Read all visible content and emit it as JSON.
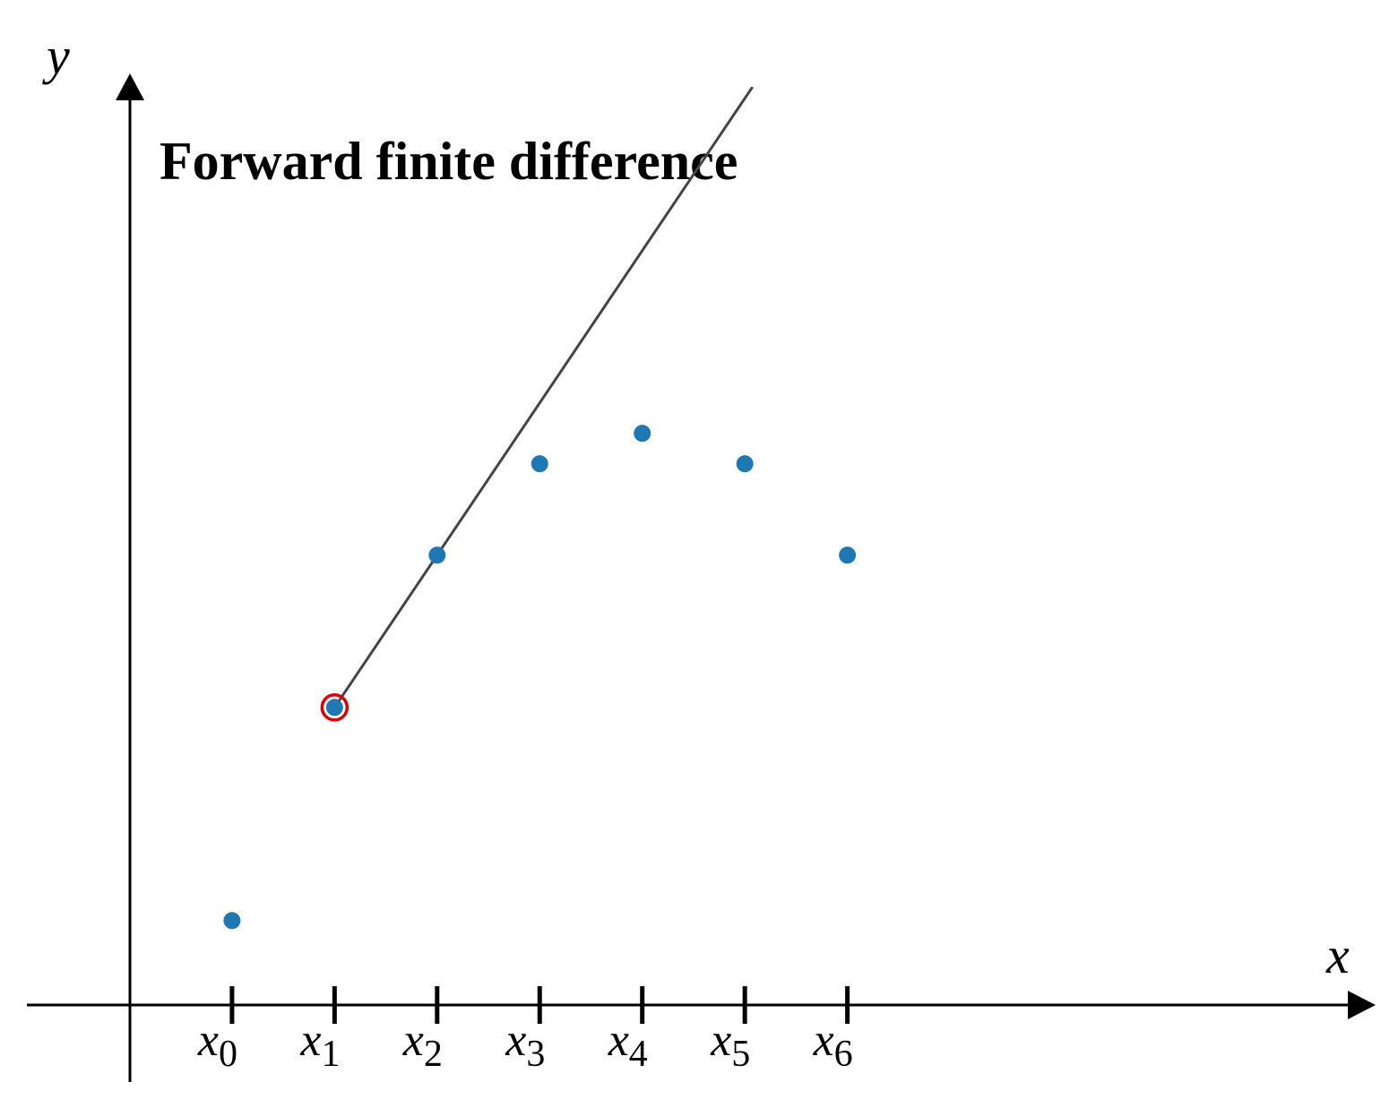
{
  "chart_data": {
    "type": "scatter",
    "title": "Forward finite difference",
    "x_label": "x",
    "y_label": "y",
    "x": [
      1,
      2,
      3,
      4,
      5,
      6,
      7
    ],
    "values": [
      2.8,
      9.8,
      14.8,
      17.8,
      18.8,
      17.8,
      14.8
    ],
    "tick_labels": [
      {
        "var": "x",
        "sub": "0"
      },
      {
        "var": "x",
        "sub": "1"
      },
      {
        "var": "x",
        "sub": "2"
      },
      {
        "var": "x",
        "sub": "3"
      },
      {
        "var": "x",
        "sub": "4"
      },
      {
        "var": "x",
        "sub": "5"
      },
      {
        "var": "x",
        "sub": "6"
      }
    ],
    "xlim": [
      -1,
      12.15
    ],
    "ylim": [
      -2.5,
      30.5
    ],
    "color": "#1f77b4",
    "line_color": "#444444",
    "highlight_color": "#e00000",
    "highlight": 1,
    "secant": [
      1,
      2
    ]
  }
}
